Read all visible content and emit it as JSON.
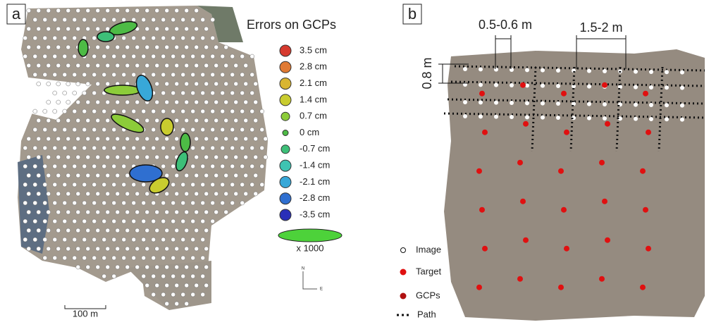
{
  "panel_a": {
    "label": "a",
    "legend_title": "Errors on GCPs",
    "legend": [
      {
        "label": "3.5 cm",
        "color": "#d63a2e"
      },
      {
        "label": "2.8 cm",
        "color": "#e07a34"
      },
      {
        "label": "2.1 cm",
        "color": "#d9b531"
      },
      {
        "label": "1.4 cm",
        "color": "#c9cc2f"
      },
      {
        "label": "0.7 cm",
        "color": "#8ccc3a"
      },
      {
        "label": "0 cm",
        "color": "#4dbb45"
      },
      {
        "label": "-0.7 cm",
        "color": "#3dbf78"
      },
      {
        "label": "-1.4 cm",
        "color": "#3ec3b2"
      },
      {
        "label": "-2.1 cm",
        "color": "#38a8d8"
      },
      {
        "label": "-2.8 cm",
        "color": "#2f6fd0"
      },
      {
        "label": "-3.5 cm",
        "color": "#2a2fb8"
      }
    ],
    "scale_factor": "x 1000",
    "scale_bar": "100 m",
    "north": "N",
    "east": "E"
  },
  "panel_b": {
    "label": "b",
    "spacing_short": "0.5-0.6 m",
    "spacing_long": "1.5-2 m",
    "row_spacing": "0.8 m",
    "legend": [
      {
        "label": "Image",
        "symbol": "image"
      },
      {
        "label": "Target",
        "symbol": "target"
      },
      {
        "label": "GCPs",
        "symbol": "gcp"
      },
      {
        "label": "Path",
        "symbol": "path"
      }
    ]
  }
}
